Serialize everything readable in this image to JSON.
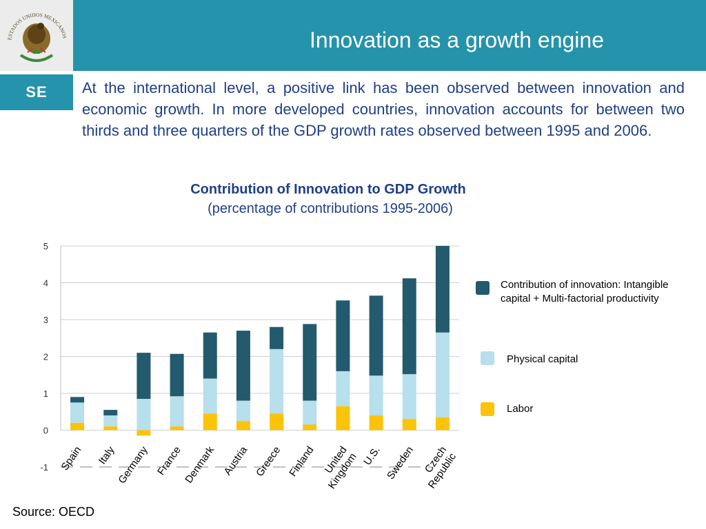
{
  "header": {
    "title": "Innovation as a growth engine",
    "logo_text": "ESTADOS UNIDOS MEXICANOS",
    "badge": "SE"
  },
  "intro_text": "At the international level, a positive link has been observed between innovation and economic growth. In more developed countries, innovation accounts for between two thirds and three quarters of the GDP growth rates observed between 1995 and 2006.",
  "source": "Source: OECD",
  "colors": {
    "header": "#2593ab",
    "innovation": "#235a6e",
    "physical_capital": "#b7dfec",
    "labor": "#fbc30a",
    "text_blue": "#1f3f86"
  },
  "chart_data": {
    "type": "bar",
    "stacked": true,
    "title": "Contribution of Innovation to GDP Growth",
    "subtitle": "(percentage of contributions 1995-2006)",
    "categories": [
      "Spain",
      "Italy",
      "Germany",
      "France",
      "Denmark",
      "Austria",
      "Greece",
      "Finland",
      "United Kingdom",
      "U.S.",
      "Sweden",
      "Czech Republic"
    ],
    "category_labels": [
      [
        "Spain"
      ],
      [
        "Italy"
      ],
      [
        "Germany"
      ],
      [
        "France"
      ],
      [
        "Denmark"
      ],
      [
        "Austria"
      ],
      [
        "Greece"
      ],
      [
        "Finland"
      ],
      [
        "United",
        "Kingdom"
      ],
      [
        "U.S."
      ],
      [
        "Sweden"
      ],
      [
        "Czech",
        "Republic"
      ]
    ],
    "series": [
      {
        "name": "Labor",
        "color": "#fbc30a",
        "values": [
          0.2,
          0.1,
          -0.15,
          0.1,
          0.45,
          0.25,
          0.45,
          0.15,
          0.65,
          0.4,
          0.3,
          0.35
        ]
      },
      {
        "name": "Physical capital",
        "color": "#b7dfec",
        "values": [
          0.55,
          0.3,
          0.85,
          0.82,
          0.95,
          0.55,
          1.75,
          0.65,
          0.95,
          1.08,
          1.22,
          2.3
        ]
      },
      {
        "name": "Contribution of innovation: Intangible capital  + Multi-factorial productivity",
        "color": "#235a6e",
        "values": [
          0.15,
          0.15,
          1.25,
          1.15,
          1.25,
          1.9,
          0.6,
          2.08,
          1.92,
          2.17,
          2.6,
          2.35
        ]
      }
    ],
    "ylim": [
      -1,
      5
    ],
    "yticks": [
      -1,
      0,
      1,
      2,
      3,
      4,
      5
    ],
    "grid": true,
    "legend_position": "right"
  }
}
